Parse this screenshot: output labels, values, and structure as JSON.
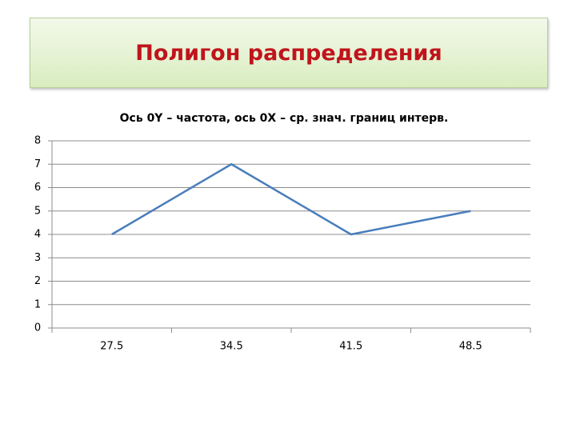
{
  "slide": {
    "title": "Полигон распределения"
  },
  "chart_data": {
    "type": "line",
    "title": "Ось 0Y – частота, ось 0X – ср. знач. границ интерв.",
    "categories": [
      "27.5",
      "34.5",
      "41.5",
      "48.5"
    ],
    "values": [
      4,
      7,
      4,
      5
    ],
    "color": "#4a7ebb",
    "ylim": [
      0,
      8
    ],
    "yticks": [
      0,
      1,
      2,
      3,
      4,
      5,
      6,
      7,
      8
    ],
    "grid": true
  }
}
